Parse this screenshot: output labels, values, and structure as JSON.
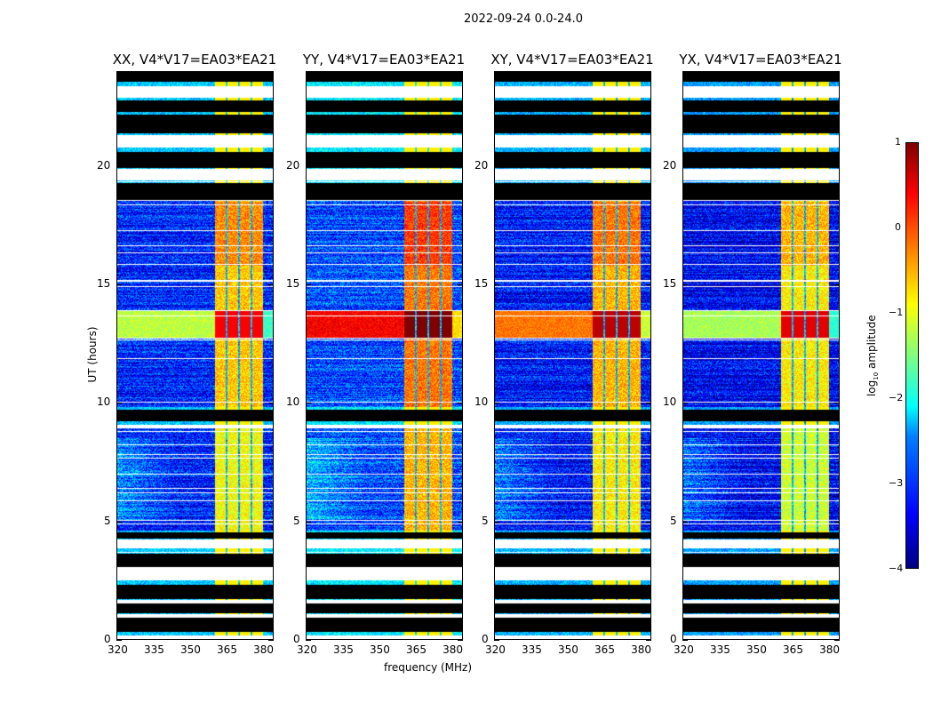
{
  "suptitle": "2022-09-24 0.0-24.0",
  "chart_data": {
    "type": "heatmap",
    "xlabel": "frequency (MHz)",
    "ylabel": "UT (hours)",
    "xlim": [
      320,
      384
    ],
    "ylim": [
      0,
      24
    ],
    "xticks": [
      "320",
      "335",
      "350",
      "365",
      "380"
    ],
    "yticks": [
      "0",
      "5",
      "10",
      "15",
      "20"
    ],
    "colorbar": {
      "label_main": "log",
      "label_sub": "10",
      "label_rest": " amplitude",
      "range": [
        -4,
        1
      ],
      "ticks": [
        "1",
        "0",
        "−1",
        "−2",
        "−3",
        "−4"
      ],
      "colormap": "jet"
    },
    "panels": [
      {
        "title": "XX, V4*V17=EA03*EA21",
        "base": -3.2,
        "rfi": -0.6,
        "burst": 0.0,
        "burst_bg": -1.2
      },
      {
        "title": "YY, V4*V17=EA03*EA21",
        "base": -3.0,
        "rfi": -0.2,
        "burst": 0.6,
        "burst_bg": 0.4
      },
      {
        "title": "XY, V4*V17=EA03*EA21",
        "base": -3.3,
        "rfi": -0.5,
        "burst": 0.3,
        "burst_bg": -0.2
      },
      {
        "title": "YX, V4*V17=EA03*EA21",
        "base": -3.4,
        "rfi": -0.8,
        "burst": 0.1,
        "burst_bg": -1.3
      }
    ],
    "rfi_channels_mhz": [
      [
        360.4,
        364.7
      ],
      [
        365.4,
        369.7
      ],
      [
        370.5,
        374.8
      ],
      [
        375.5,
        379.8
      ]
    ],
    "burst_hours": [
      12.7,
      13.9
    ],
    "flagged_hours": [
      [
        0.3,
        0.9,
        "black"
      ],
      [
        0.9,
        1.05,
        "white"
      ],
      [
        1.1,
        1.5,
        "black"
      ],
      [
        1.5,
        1.65,
        "white"
      ],
      [
        1.7,
        2.3,
        "black"
      ],
      [
        2.5,
        3.0,
        "white"
      ],
      [
        3.05,
        3.6,
        "black"
      ],
      [
        3.85,
        4.2,
        "white"
      ],
      [
        4.25,
        4.5,
        "black"
      ],
      [
        8.9,
        9.05,
        "white"
      ],
      [
        9.2,
        9.7,
        "black"
      ],
      [
        18.6,
        19.3,
        "black"
      ],
      [
        19.4,
        19.9,
        "white"
      ],
      [
        19.95,
        20.6,
        "black"
      ],
      [
        20.8,
        21.3,
        "white"
      ],
      [
        21.4,
        22.2,
        "black"
      ],
      [
        22.3,
        22.8,
        "black"
      ],
      [
        22.9,
        23.4,
        "white"
      ],
      [
        23.6,
        24,
        "black"
      ],
      [
        0,
        0.15,
        "white"
      ]
    ]
  }
}
